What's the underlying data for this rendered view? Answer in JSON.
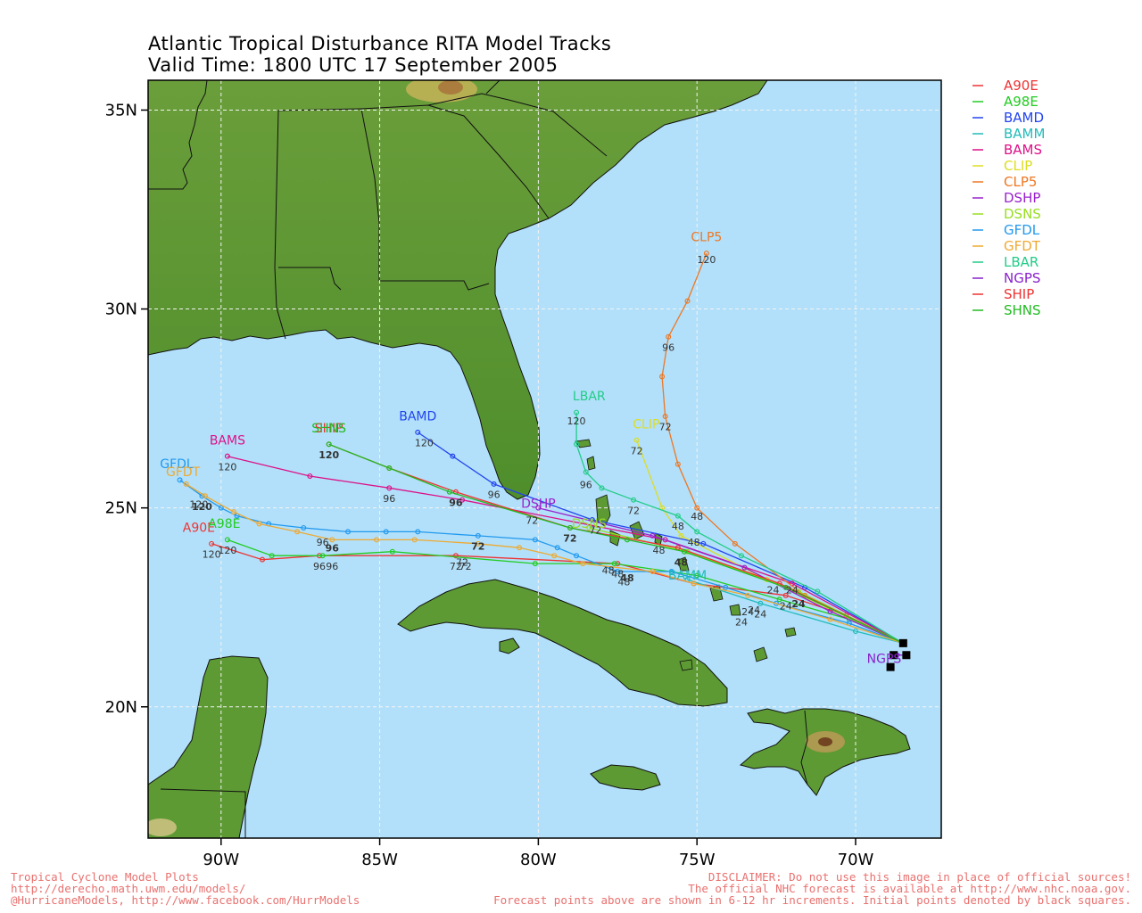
{
  "title_line1": "Atlantic Tropical Disturbance RITA Model Tracks",
  "title_line2": "Valid Time: 1800 UTC 17 September 2005",
  "lat_ticks": [
    {
      "lat": 35,
      "label": "35N"
    },
    {
      "lat": 30,
      "label": "30N"
    },
    {
      "lat": 25,
      "label": "25N"
    },
    {
      "lat": 20,
      "label": "20N"
    }
  ],
  "lon_ticks": [
    {
      "lon": -90,
      "label": "90W"
    },
    {
      "lon": -85,
      "label": "85W"
    },
    {
      "lon": -80,
      "label": "80W"
    },
    {
      "lon": -75,
      "label": "75W"
    },
    {
      "lon": -70,
      "label": "70W"
    }
  ],
  "map_extent": {
    "lon_min": -92.3,
    "lon_max": -67.3,
    "lat_min": 16.7,
    "lat_max": 35.75
  },
  "colors": {
    "ocean": "#b2e0fa",
    "land": "#5d9a34",
    "grid": "#f3f3f3",
    "footer": "#e8716f"
  },
  "models": [
    {
      "name": "A90E",
      "color": "#ee3333",
      "points": [
        [
          -68.5,
          21.6
        ],
        [
          -70.3,
          22.3
        ],
        [
          -72.2,
          22.8
        ],
        [
          -75.1,
          23.1
        ],
        [
          -77.5,
          23.6
        ],
        [
          -82.6,
          23.8
        ],
        [
          -86.9,
          23.8
        ],
        [
          -88.7,
          23.7
        ],
        [
          -90.3,
          24.1
        ]
      ],
      "hours": [
        0,
        12,
        24,
        48,
        72,
        96,
        120
      ],
      "label_pos": [
        -90.7,
        24.4
      ]
    },
    {
      "name": "A98E",
      "color": "#22cc22",
      "points": [
        [
          -68.5,
          21.6
        ],
        [
          -70.2,
          22.2
        ],
        [
          -72.4,
          22.7
        ],
        [
          -75.0,
          23.3
        ],
        [
          -77.6,
          23.6
        ],
        [
          -80.1,
          23.6
        ],
        [
          -84.6,
          23.9
        ],
        [
          -86.8,
          23.8
        ],
        [
          -88.4,
          23.8
        ],
        [
          -89.8,
          24.2
        ]
      ],
      "label_pos": [
        -89.9,
        24.5
      ]
    },
    {
      "name": "BAMD",
      "color": "#2244ee",
      "points": [
        [
          -68.5,
          21.6
        ],
        [
          -71.6,
          23.0
        ],
        [
          -74.8,
          24.1
        ],
        [
          -78.3,
          24.7
        ],
        [
          -81.4,
          25.6
        ],
        [
          -82.7,
          26.3
        ],
        [
          -83.8,
          26.9
        ]
      ],
      "label_pos": [
        -83.8,
        27.2
      ]
    },
    {
      "name": "BAMM",
      "color": "#22bbbb",
      "points": [
        [
          -68.5,
          21.6
        ],
        [
          -70.0,
          21.9
        ],
        [
          -73.0,
          22.6
        ],
        [
          -75.3,
          23.2
        ]
      ],
      "label_pos": [
        -75.3,
        23.2
      ]
    },
    {
      "name": "BAMS",
      "color": "#dd1188",
      "points": [
        [
          -68.5,
          21.6
        ],
        [
          -72.0,
          23.1
        ],
        [
          -76.0,
          24.2
        ],
        [
          -82.4,
          25.2
        ],
        [
          -84.7,
          25.5
        ],
        [
          -87.2,
          25.8
        ],
        [
          -89.8,
          26.3
        ]
      ],
      "label_pos": [
        -89.8,
        26.6
      ]
    },
    {
      "name": "CLIP",
      "color": "#dddd22",
      "points": [
        [
          -68.5,
          21.6
        ],
        [
          -72.8,
          23.2
        ],
        [
          -75.5,
          24.3
        ],
        [
          -76.1,
          25.0
        ],
        [
          -76.9,
          26.7
        ]
      ],
      "label_pos": [
        -76.6,
        27.0
      ]
    },
    {
      "name": "CLP5",
      "color": "#ee7722",
      "points": [
        [
          -68.5,
          21.6
        ],
        [
          -71.6,
          22.8
        ],
        [
          -73.8,
          24.1
        ],
        [
          -75.0,
          25.0
        ],
        [
          -75.6,
          26.1
        ],
        [
          -76.0,
          27.3
        ],
        [
          -76.1,
          28.3
        ],
        [
          -75.9,
          29.3
        ],
        [
          -75.3,
          30.2
        ],
        [
          -74.7,
          31.4
        ]
      ],
      "label_pos": [
        -74.7,
        31.7
      ]
    },
    {
      "name": "DSHP",
      "color": "#9922cc",
      "points": [
        [
          -68.5,
          21.6
        ],
        [
          -70.8,
          22.4
        ],
        [
          -73.5,
          23.5
        ],
        [
          -76.4,
          24.3
        ],
        [
          -80.0,
          25.0
        ]
      ],
      "label_pos": [
        -80.0,
        25.0
      ]
    },
    {
      "name": "DSNS",
      "color": "#99dd22",
      "points": [
        [
          -68.5,
          21.6
        ],
        [
          -71.8,
          22.9
        ],
        [
          -75.3,
          23.9
        ],
        [
          -78.4,
          24.5
        ]
      ],
      "label_pos": [
        -78.4,
        24.5
      ]
    },
    {
      "name": "GFDL",
      "color": "#2299ee",
      "points": [
        [
          -68.5,
          21.6
        ],
        [
          -70.2,
          22.1
        ],
        [
          -72.5,
          22.6
        ],
        [
          -74.1,
          23.0
        ],
        [
          -75.8,
          23.4
        ],
        [
          -77.5,
          23.4
        ],
        [
          -78.8,
          23.8
        ],
        [
          -79.4,
          24.0
        ],
        [
          -80.1,
          24.2
        ],
        [
          -81.9,
          24.3
        ],
        [
          -83.8,
          24.4
        ],
        [
          -84.8,
          24.4
        ],
        [
          -86.0,
          24.4
        ],
        [
          -87.4,
          24.5
        ],
        [
          -88.5,
          24.6
        ],
        [
          -89.5,
          24.8
        ],
        [
          -90.0,
          25.0
        ],
        [
          -90.6,
          25.3
        ],
        [
          -91.3,
          25.7
        ]
      ],
      "label_pos": [
        -91.4,
        26.0
      ]
    },
    {
      "name": "GFDT",
      "color": "#eeaa33",
      "points": [
        [
          -68.5,
          21.6
        ],
        [
          -70.8,
          22.2
        ],
        [
          -73.4,
          22.8
        ],
        [
          -75.1,
          23.1
        ],
        [
          -76.4,
          23.4
        ],
        [
          -78.6,
          23.6
        ],
        [
          -79.5,
          23.8
        ],
        [
          -80.6,
          24.0
        ],
        [
          -81.9,
          24.1
        ],
        [
          -83.9,
          24.2
        ],
        [
          -85.1,
          24.2
        ],
        [
          -86.5,
          24.2
        ],
        [
          -87.6,
          24.4
        ],
        [
          -88.8,
          24.6
        ],
        [
          -89.6,
          24.9
        ],
        [
          -90.5,
          25.3
        ],
        [
          -91.1,
          25.6
        ]
      ],
      "label_pos": [
        -91.2,
        25.8
      ]
    },
    {
      "name": "LBAR",
      "color": "#22cc88",
      "points": [
        [
          -68.5,
          21.6
        ],
        [
          -71.2,
          22.9
        ],
        [
          -73.6,
          23.8
        ],
        [
          -75.0,
          24.4
        ],
        [
          -75.6,
          24.8
        ],
        [
          -77.0,
          25.2
        ],
        [
          -78.0,
          25.5
        ],
        [
          -78.5,
          25.9
        ],
        [
          -78.8,
          26.6
        ],
        [
          -78.8,
          27.4
        ]
      ],
      "label_pos": [
        -78.4,
        27.7
      ]
    },
    {
      "name": "NGPS",
      "color": "#8822cc",
      "points": [
        [
          -68.5,
          21.3
        ],
        [
          -68.7,
          21.3
        ]
      ],
      "label_pos": [
        -69.1,
        21.1
      ]
    },
    {
      "name": "SHIP",
      "color": "#ee3333",
      "points": [
        [
          -68.5,
          21.6
        ],
        [
          -72.4,
          23.1
        ],
        [
          -75.6,
          24.0
        ],
        [
          -79.0,
          24.5
        ],
        [
          -82.6,
          25.4
        ],
        [
          -84.7,
          26.0
        ],
        [
          -86.6,
          26.6
        ]
      ],
      "label_pos": [
        -86.6,
        26.9
      ]
    },
    {
      "name": "SHNS",
      "color": "#22bb22",
      "points": [
        [
          -68.5,
          21.6
        ],
        [
          -72.2,
          23.0
        ],
        [
          -75.4,
          23.9
        ],
        [
          -77.2,
          24.2
        ],
        [
          -79.0,
          24.5
        ],
        [
          -82.8,
          25.4
        ],
        [
          -84.7,
          26.0
        ],
        [
          -86.6,
          26.6
        ]
      ],
      "label_pos": [
        -86.6,
        26.9
      ]
    }
  ],
  "hour_labels": [
    {
      "text": "120",
      "lon": -74.7,
      "lat": 31.15
    },
    {
      "text": "96",
      "lon": -75.9,
      "lat": 28.95
    },
    {
      "text": "72",
      "lon": -76.0,
      "lat": 26.95
    },
    {
      "text": "48",
      "lon": -75.0,
      "lat": 24.7
    },
    {
      "text": "120",
      "lon": -78.8,
      "lat": 27.1
    },
    {
      "text": "96",
      "lon": -78.5,
      "lat": 25.5
    },
    {
      "text": "72",
      "lon": -77.0,
      "lat": 24.85
    },
    {
      "text": "48",
      "lon": -75.6,
      "lat": 24.45
    },
    {
      "text": "72",
      "lon": -76.9,
      "lat": 26.35
    },
    {
      "text": "48",
      "lon": -75.1,
      "lat": 24.05
    },
    {
      "text": "120",
      "lon": -83.6,
      "lat": 26.55
    },
    {
      "text": "96",
      "lon": -81.4,
      "lat": 25.25
    },
    {
      "text": "72",
      "lon": -80.2,
      "lat": 24.6
    },
    {
      "text": "48",
      "lon": -76.2,
      "lat": 23.85
    },
    {
      "text": "120",
      "lon": -89.8,
      "lat": 25.95
    },
    {
      "text": "96",
      "lon": -84.7,
      "lat": 25.15
    },
    {
      "text": "72",
      "lon": -78.2,
      "lat": 24.35
    },
    {
      "text": "120",
      "lon": -86.6,
      "lat": 26.25,
      "bold": true
    },
    {
      "text": "96",
      "lon": -82.6,
      "lat": 25.05,
      "bold": true
    },
    {
      "text": "72",
      "lon": -79.0,
      "lat": 24.15,
      "bold": true
    },
    {
      "text": "48",
      "lon": -75.5,
      "lat": 23.55,
      "bold": true
    },
    {
      "text": "120",
      "lon": -90.6,
      "lat": 24.95,
      "bold": true
    },
    {
      "text": "96",
      "lon": -86.5,
      "lat": 23.9,
      "bold": true
    },
    {
      "text": "72",
      "lon": -81.9,
      "lat": 23.95,
      "bold": true
    },
    {
      "text": "48",
      "lon": -77.2,
      "lat": 23.15,
      "bold": true
    },
    {
      "text": "24",
      "lon": -71.8,
      "lat": 22.5,
      "bold": true
    },
    {
      "text": "120",
      "lon": -90.7,
      "lat": 25.0
    },
    {
      "text": "96",
      "lon": -86.8,
      "lat": 24.05
    },
    {
      "text": "72",
      "lon": -82.4,
      "lat": 23.55
    },
    {
      "text": "48",
      "lon": -77.8,
      "lat": 23.35
    },
    {
      "text": "24",
      "lon": -73.4,
      "lat": 22.3
    },
    {
      "text": "120",
      "lon": -90.3,
      "lat": 23.75
    },
    {
      "text": "96",
      "lon": -86.9,
      "lat": 23.45
    },
    {
      "text": "72",
      "lon": -82.6,
      "lat": 23.45
    },
    {
      "text": "48",
      "lon": -77.5,
      "lat": 23.25
    },
    {
      "text": "24",
      "lon": -72.2,
      "lat": 22.45
    },
    {
      "text": "120",
      "lon": -89.8,
      "lat": 23.85
    },
    {
      "text": "96",
      "lon": -86.5,
      "lat": 23.45
    },
    {
      "text": "72",
      "lon": -82.3,
      "lat": 23.45
    },
    {
      "text": "48",
      "lon": -77.3,
      "lat": 23.05
    },
    {
      "text": "24",
      "lon": -73.2,
      "lat": 22.35
    },
    {
      "text": "24",
      "lon": -72.0,
      "lat": 22.85
    },
    {
      "text": "24",
      "lon": -72.6,
      "lat": 22.85
    },
    {
      "text": "24",
      "lon": -73.0,
      "lat": 22.25
    },
    {
      "text": "24",
      "lon": -73.6,
      "lat": 22.05
    }
  ],
  "initial_points": [
    [
      -68.5,
      21.6
    ],
    [
      -68.4,
      21.3
    ],
    [
      -68.8,
      21.3
    ],
    [
      -68.9,
      21.0
    ]
  ],
  "footer": {
    "left1": "Tropical Cyclone Model Plots",
    "left2": "http://derecho.math.uwm.edu/models/",
    "left3": "@HurricaneModels, http://www.facebook.com/HurrModels",
    "right1": "DISCLAIMER: Do not use this image in place of official sources!",
    "right2": "The official NHC forecast is available at http://www.nhc.noaa.gov.",
    "right3": "Forecast points above are shown in 6-12 hr increments. Initial points denoted by black squares."
  }
}
